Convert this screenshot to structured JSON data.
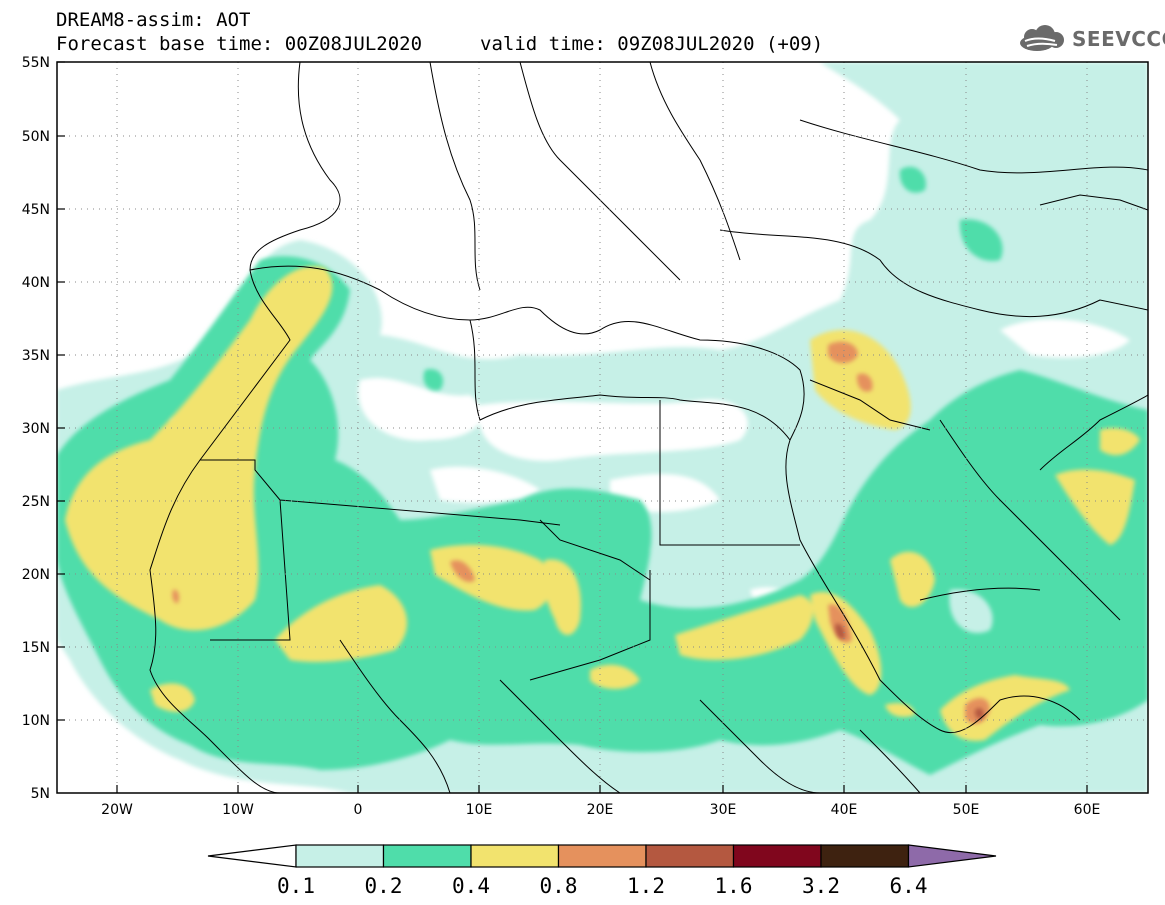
{
  "header": {
    "title": "DREAM8-assim: AOT",
    "base_time": "Forecast base time: 00Z08JUL2020",
    "valid_time": "valid time: 09Z08JUL2020 (+09)",
    "logo": "SEEVCCC",
    "logo_icon": "cloud-icon"
  },
  "map": {
    "lat_labels": [
      "55N",
      "50N",
      "45N",
      "40N",
      "35N",
      "30N",
      "25N",
      "20N",
      "15N",
      "10N",
      "5N"
    ],
    "lon_labels": [
      "20W",
      "10W",
      "0",
      "10E",
      "20E",
      "30E",
      "40E",
      "50E",
      "60E"
    ],
    "field_colors": {
      "c1": "#c6f0e7",
      "c2": "#4fddaa",
      "c3": "#f2e36e",
      "c4": "#e5915d",
      "c5": "#b45840"
    }
  },
  "colorbar": {
    "labels": [
      "0.1",
      "0.2",
      "0.4",
      "0.8",
      "1.2",
      "1.6",
      "3.2",
      "6.4"
    ],
    "colors": [
      "#ffffff",
      "#c6f0e7",
      "#4fddaa",
      "#f2e36e",
      "#e5915d",
      "#b45840",
      "#80061d",
      "#3e2210",
      "#8e6aa9"
    ]
  }
}
